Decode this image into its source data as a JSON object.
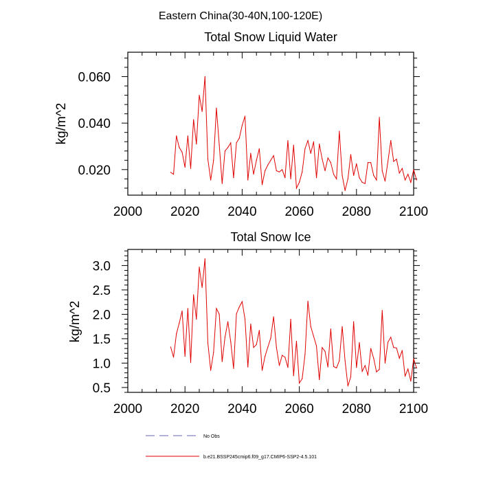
{
  "figure": {
    "title": "Eastern China(30-40N,100-120E)",
    "legend": [
      {
        "label": "No Obs",
        "color": "#6060b0",
        "style": "dashed"
      },
      {
        "label": "b.e21.BSSP245cmip6.f09_g17.CMIP6-SSP2-4.5.101",
        "color": "#e00000",
        "style": "solid"
      }
    ]
  },
  "chart_data": [
    {
      "type": "line",
      "title": "Total Snow Liquid Water",
      "xlabel": "",
      "ylabel": "kg/m^2",
      "xlim": [
        2000,
        2100
      ],
      "ylim": [
        0.009,
        0.0705
      ],
      "x_ticks": [
        2000,
        2020,
        2040,
        2060,
        2080,
        2100
      ],
      "x_tick_labels": [
        "2000",
        "2020",
        "2040",
        "2060",
        "2080",
        "2100"
      ],
      "y_ticks": [
        0.02,
        0.04,
        0.06
      ],
      "y_tick_labels": [
        "0.020",
        "0.040",
        "0.060"
      ],
      "grid": false,
      "series": [
        {
          "name": "b.e21.BSSP245cmip6.f09_g17.CMIP6-SSP2-4.5.101",
          "color": "#e00000",
          "x_start": 2015,
          "x_step": 1,
          "values": [
            0.0188,
            0.018,
            0.0345,
            0.0295,
            0.0275,
            0.021,
            0.0345,
            0.0205,
            0.0415,
            0.031,
            0.052,
            0.045,
            0.06,
            0.0245,
            0.0155,
            0.024,
            0.0465,
            0.0305,
            0.014,
            0.028,
            0.0295,
            0.0315,
            0.0165,
            0.0315,
            0.0335,
            0.039,
            0.043,
            0.0155,
            0.027,
            0.018,
            0.024,
            0.029,
            0.0135,
            0.0195,
            0.022,
            0.024,
            0.026,
            0.0195,
            0.019,
            0.02,
            0.0165,
            0.0325,
            0.016,
            0.0305,
            0.012,
            0.0145,
            0.019,
            0.029,
            0.0325,
            0.027,
            0.032,
            0.0165,
            0.031,
            0.0245,
            0.0195,
            0.025,
            0.023,
            0.018,
            0.016,
            0.0365,
            0.0175,
            0.011,
            0.016,
            0.0265,
            0.0175,
            0.0225,
            0.0165,
            0.0145,
            0.014,
            0.023,
            0.023,
            0.0175,
            0.0155,
            0.0425,
            0.0195,
            0.015,
            0.0235,
            0.0325,
            0.0235,
            0.0245,
            0.0185,
            0.0205,
            0.0155,
            0.018,
            0.0145,
            0.02,
            0.0155
          ]
        }
      ]
    },
    {
      "type": "line",
      "title": "Total Snow Ice",
      "xlabel": "",
      "ylabel": "kg/m^2",
      "xlim": [
        2000,
        2100
      ],
      "ylim": [
        0.4,
        3.33
      ],
      "x_ticks": [
        2000,
        2020,
        2040,
        2060,
        2080,
        2100
      ],
      "x_tick_labels": [
        "2000",
        "2020",
        "2040",
        "2060",
        "2080",
        "2100"
      ],
      "y_ticks": [
        0.5,
        1.0,
        1.5,
        2.0,
        2.5,
        3.0
      ],
      "y_tick_labels": [
        "0.5",
        "1.0",
        "1.5",
        "2.0",
        "2.5",
        "3.0"
      ],
      "grid": false,
      "series": [
        {
          "name": "b.e21.BSSP245cmip6.f09_g17.CMIP6-SSP2-4.5.101",
          "color": "#e00000",
          "x_start": 2015,
          "x_step": 1,
          "values": [
            1.33,
            1.12,
            1.6,
            1.82,
            2.07,
            1.14,
            2.12,
            1.01,
            2.4,
            1.9,
            2.97,
            2.55,
            3.14,
            1.42,
            0.85,
            1.22,
            2.12,
            2.0,
            1.03,
            1.53,
            1.85,
            1.44,
            0.89,
            2.01,
            2.15,
            2.26,
            1.9,
            0.92,
            1.8,
            1.32,
            1.38,
            1.67,
            0.85,
            1.14,
            1.33,
            1.51,
            1.95,
            1.32,
            0.95,
            1.16,
            1.12,
            0.91,
            1.9,
            0.74,
            1.45,
            0.59,
            0.68,
            1.18,
            2.27,
            1.75,
            1.55,
            1.35,
            0.66,
            1.32,
            1.24,
            0.92,
            1.7,
            0.93,
            0.9,
            1.05,
            1.75,
            1.05,
            0.53,
            0.72,
            1.85,
            0.91,
            1.42,
            0.83,
            0.95,
            0.75,
            1.3,
            1.1,
            0.82,
            0.87,
            2.08,
            1.0,
            1.43,
            1.53,
            1.32,
            1.31,
            1.1,
            1.26,
            0.73,
            0.88,
            0.63,
            1.09,
            0.9
          ]
        }
      ]
    }
  ]
}
